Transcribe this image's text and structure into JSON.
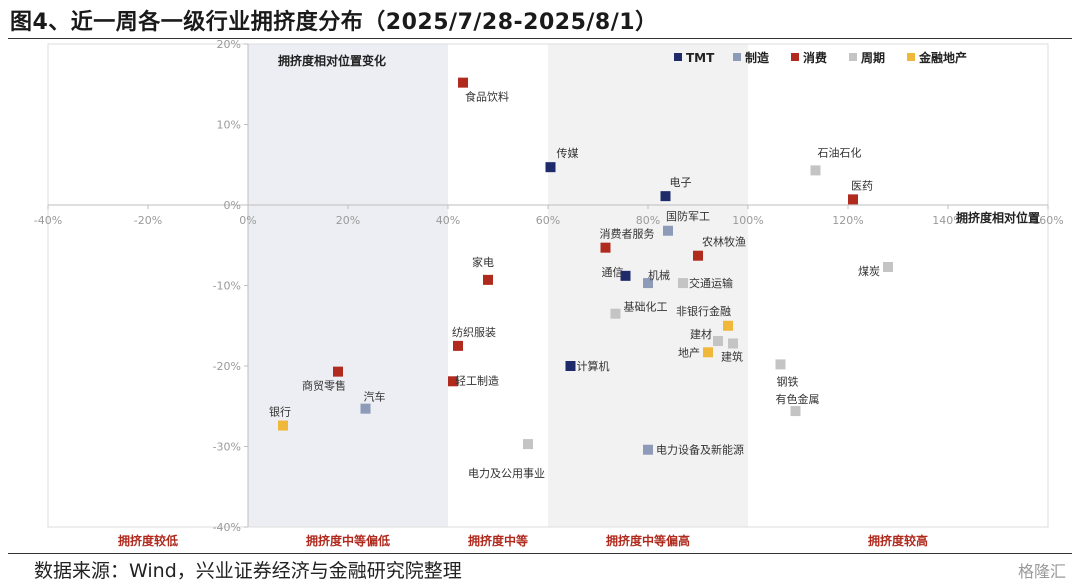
{
  "title": "图4、近一周各一级行业拥挤度分布（2025/7/28-2025/8/1）",
  "source": "数据来源：Wind，兴业证券经济与金融研究院整理",
  "watermark": "格隆汇",
  "colors": {
    "TMT": "#1f2a6b",
    "制造": "#8e9bb8",
    "消费": "#b02a1e",
    "周期": "#c4c4c4",
    "金融地产": "#f0b83a"
  },
  "chart_data": {
    "type": "scatter",
    "xlim": [
      -40,
      160
    ],
    "ylim": [
      -40,
      20
    ],
    "xticks": [
      "-40%",
      "-20%",
      "0%",
      "20%",
      "40%",
      "60%",
      "80%",
      "100%",
      "120%",
      "140%",
      "160%"
    ],
    "yticks": [
      "-40%",
      "-30%",
      "-20%",
      "-10%",
      "0%",
      "10%",
      "20%"
    ],
    "xlabel": "拥挤度相对位置",
    "ylabel": "拥挤度相对位置变化",
    "legend_position": "top-right",
    "legend": [
      "TMT",
      "制造",
      "消费",
      "周期",
      "金融地产"
    ],
    "bands": [
      {
        "from": -40,
        "to": 0,
        "label": "拥挤度较低"
      },
      {
        "from": 0,
        "to": 40,
        "label": "拥挤度中等偏低"
      },
      {
        "from": 40,
        "to": 60,
        "label": "拥挤度中等"
      },
      {
        "from": 60,
        "to": 100,
        "label": "拥挤度中等偏高"
      },
      {
        "from": 100,
        "to": 160,
        "label": "拥挤度较高"
      }
    ],
    "points": [
      {
        "name": "食品饮料",
        "x": 43,
        "y": 15.2,
        "group": "消费"
      },
      {
        "name": "传媒",
        "x": 60.5,
        "y": 4.7,
        "group": "TMT"
      },
      {
        "name": "电子",
        "x": 83.5,
        "y": 1.1,
        "group": "TMT"
      },
      {
        "name": "石油石化",
        "x": 113.5,
        "y": 4.3,
        "group": "周期"
      },
      {
        "name": "医药",
        "x": 121,
        "y": 0.7,
        "group": "消费"
      },
      {
        "name": "国防军工",
        "x": 84,
        "y": -3.2,
        "group": "制造"
      },
      {
        "name": "消费者服务",
        "x": 71.5,
        "y": -5.3,
        "group": "消费"
      },
      {
        "name": "农林牧渔",
        "x": 90,
        "y": -6.3,
        "group": "消费"
      },
      {
        "name": "家电",
        "x": 48,
        "y": -9.3,
        "group": "消费"
      },
      {
        "name": "通信",
        "x": 75.5,
        "y": -8.8,
        "group": "TMT"
      },
      {
        "name": "机械",
        "x": 80,
        "y": -9.7,
        "group": "制造"
      },
      {
        "name": "交通运输",
        "x": 87,
        "y": -9.7,
        "group": "周期"
      },
      {
        "name": "煤炭",
        "x": 128,
        "y": -7.7,
        "group": "周期"
      },
      {
        "name": "基础化工",
        "x": 73.5,
        "y": -13.5,
        "group": "周期"
      },
      {
        "name": "非银行金融",
        "x": 96,
        "y": -15,
        "group": "金融地产"
      },
      {
        "name": "建材",
        "x": 94,
        "y": -16.9,
        "group": "周期"
      },
      {
        "name": "建筑",
        "x": 97,
        "y": -17.2,
        "group": "周期"
      },
      {
        "name": "地产",
        "x": 92,
        "y": -18.3,
        "group": "金融地产"
      },
      {
        "name": "纺织服装",
        "x": 42,
        "y": -17.5,
        "group": "消费"
      },
      {
        "name": "计算机",
        "x": 64.5,
        "y": -20,
        "group": "TMT"
      },
      {
        "name": "轻工制造",
        "x": 41,
        "y": -21.9,
        "group": "消费"
      },
      {
        "name": "商贸零售",
        "x": 18,
        "y": -20.7,
        "group": "消费"
      },
      {
        "name": "汽车",
        "x": 23.5,
        "y": -25.3,
        "group": "制造"
      },
      {
        "name": "银行",
        "x": 7,
        "y": -27.4,
        "group": "金融地产"
      },
      {
        "name": "钢铁",
        "x": 106.5,
        "y": -19.8,
        "group": "周期"
      },
      {
        "name": "有色金属",
        "x": 109.5,
        "y": -25.6,
        "group": "周期"
      },
      {
        "name": "电力及公用事业",
        "x": 56,
        "y": -29.7,
        "group": "周期"
      },
      {
        "name": "电力设备及新能源",
        "x": 80,
        "y": -30.4,
        "group": "制造"
      }
    ]
  }
}
